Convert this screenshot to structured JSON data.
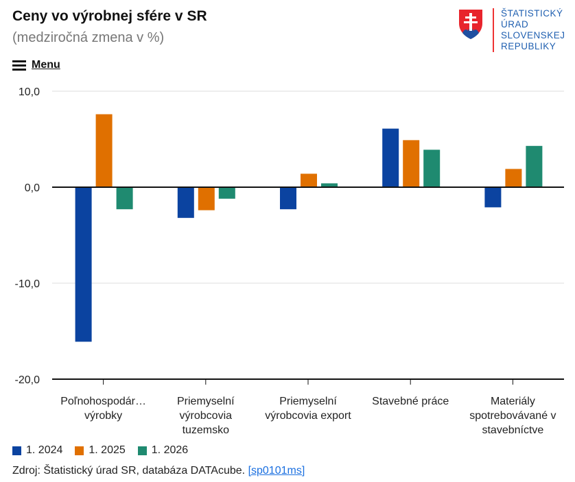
{
  "header": {
    "title": "Ceny vo výrobnej sfére v SR",
    "subtitle": "(medziročná zmena v %)",
    "menu_label": "Menu"
  },
  "logo": {
    "lines": [
      "ŠTATISTICKÝ",
      "ÚRAD",
      "SLOVENSKEJ",
      "REPUBLIKY"
    ]
  },
  "chart_data": {
    "type": "bar",
    "title": "Ceny vo výrobnej sfére v SR",
    "subtitle": "(medziročná zmena v %)",
    "categories": [
      [
        "Poľnohospodár…",
        "výrobky"
      ],
      [
        "Priemyselní",
        "výrobcovia",
        "tuzemsko"
      ],
      [
        "Priemyselní",
        "výrobcovia export"
      ],
      [
        "Stavebné práce"
      ],
      [
        "Materiály",
        "spotrebovávané v",
        "stavebníctve"
      ]
    ],
    "series": [
      {
        "name": "1. 2024",
        "color": "#0b43a0",
        "values": [
          -16.1,
          -3.2,
          -2.3,
          6.1,
          -2.1
        ]
      },
      {
        "name": "1. 2025",
        "color": "#e07000",
        "values": [
          7.6,
          -2.4,
          1.4,
          4.9,
          1.9
        ]
      },
      {
        "name": "1. 2026",
        "color": "#1f8a70",
        "values": [
          -2.3,
          -1.2,
          0.4,
          3.9,
          4.3
        ]
      }
    ],
    "yticks": [
      "10,0",
      "0,0",
      "-10,0",
      "-20,0"
    ],
    "ytick_values": [
      10,
      0,
      -10,
      -20
    ],
    "ylim": [
      -20,
      10
    ],
    "grid": true,
    "legend": "bottom-left"
  },
  "source": {
    "text": "Zdroj: Štatistický úrad SR, databáza DATAcube. ",
    "link": "[sp0101ms]"
  }
}
